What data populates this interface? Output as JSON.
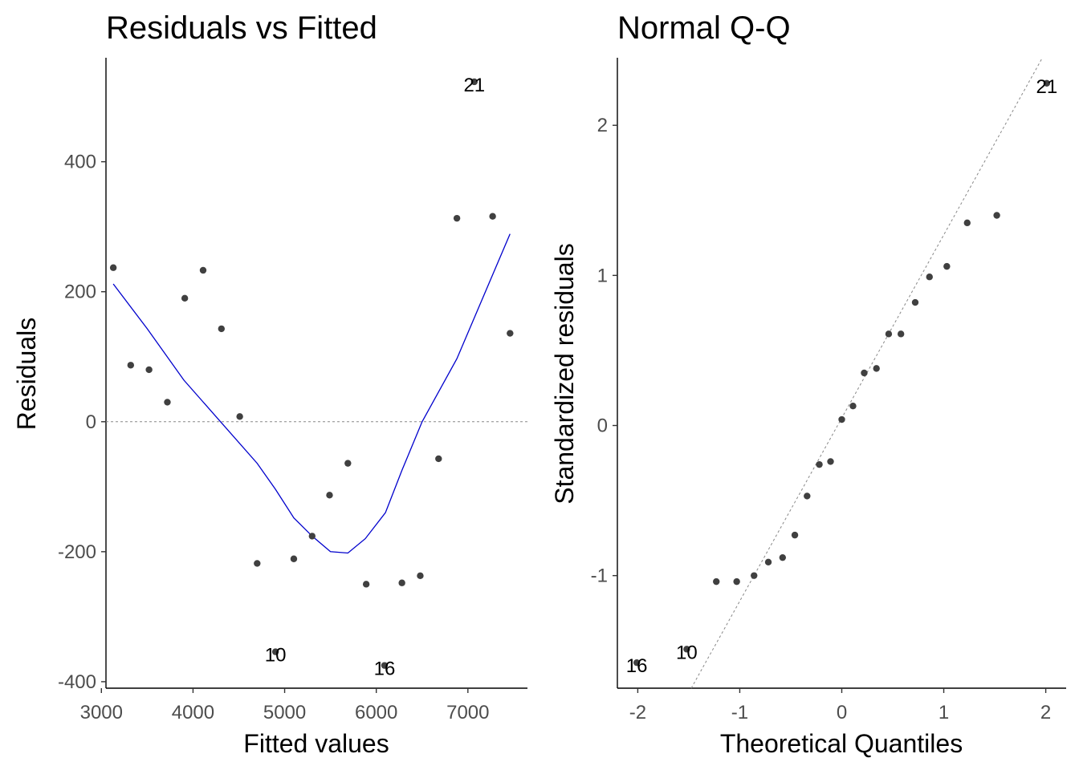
{
  "chart_data": [
    {
      "type": "scatter",
      "title": "Residuals vs Fitted",
      "xlabel": "Fitted values",
      "ylabel": "Residuals",
      "xlim": [
        3050,
        7650
      ],
      "ylim": [
        -410,
        560
      ],
      "xticks": [
        3000,
        4000,
        5000,
        6000,
        7000
      ],
      "yticks": [
        -400,
        -200,
        0,
        200,
        400
      ],
      "x_tick_labels": [
        "3000",
        "4000",
        "5000",
        "6000",
        "7000"
      ],
      "y_tick_labels": [
        "-400",
        "-200",
        "0",
        "200",
        "400"
      ],
      "grid": false,
      "reference_line": {
        "y": 0,
        "style": "dashed",
        "color": "#888888"
      },
      "smooth_color": "#0000cc",
      "points": [
        {
          "x": 3130,
          "y": 237
        },
        {
          "x": 3320,
          "y": 87
        },
        {
          "x": 3520,
          "y": 80
        },
        {
          "x": 3720,
          "y": 30
        },
        {
          "x": 3910,
          "y": 190
        },
        {
          "x": 4110,
          "y": 233
        },
        {
          "x": 4310,
          "y": 143
        },
        {
          "x": 4510,
          "y": 8
        },
        {
          "x": 4700,
          "y": -218
        },
        {
          "x": 4900,
          "y": -354
        },
        {
          "x": 5100,
          "y": -211
        },
        {
          "x": 5300,
          "y": -176
        },
        {
          "x": 5490,
          "y": -113
        },
        {
          "x": 5690,
          "y": -64
        },
        {
          "x": 5890,
          "y": -250
        },
        {
          "x": 6090,
          "y": -375
        },
        {
          "x": 6280,
          "y": -248
        },
        {
          "x": 6480,
          "y": -237
        },
        {
          "x": 6680,
          "y": -57
        },
        {
          "x": 6880,
          "y": 313
        },
        {
          "x": 7070,
          "y": 523
        },
        {
          "x": 7270,
          "y": 316
        },
        {
          "x": 7460,
          "y": 136
        }
      ],
      "smooth": [
        {
          "x": 3130,
          "y": 212
        },
        {
          "x": 3500,
          "y": 143
        },
        {
          "x": 3900,
          "y": 64
        },
        {
          "x": 4300,
          "y": 0
        },
        {
          "x": 4700,
          "y": -64
        },
        {
          "x": 4900,
          "y": -104
        },
        {
          "x": 5100,
          "y": -148
        },
        {
          "x": 5300,
          "y": -176
        },
        {
          "x": 5500,
          "y": -200
        },
        {
          "x": 5690,
          "y": -202
        },
        {
          "x": 5880,
          "y": -180
        },
        {
          "x": 6100,
          "y": -140
        },
        {
          "x": 6280,
          "y": -75
        },
        {
          "x": 6500,
          "y": 0
        },
        {
          "x": 6880,
          "y": 97
        },
        {
          "x": 7460,
          "y": 289
        }
      ],
      "point_labels": [
        {
          "text": "21",
          "x": 7070,
          "y": 523
        },
        {
          "text": "10",
          "x": 4900,
          "y": -354
        },
        {
          "text": "16",
          "x": 6090,
          "y": -375
        }
      ]
    },
    {
      "type": "scatter",
      "title": "Normal Q-Q",
      "xlabel": "Theoretical Quantiles",
      "ylabel": "Standardized residuals",
      "xlim": [
        -2.2,
        2.2
      ],
      "ylim": [
        -1.75,
        2.45
      ],
      "xticks": [
        -2,
        -1,
        0,
        1,
        2
      ],
      "yticks": [
        -1,
        0,
        1,
        2
      ],
      "x_tick_labels": [
        "-2",
        "-1",
        "0",
        "1",
        "2"
      ],
      "y_tick_labels": [
        "-1",
        "0",
        "1",
        "2"
      ],
      "grid": false,
      "reference_line": {
        "intercept": 0.05,
        "slope": 1.22,
        "style": "dashed",
        "color": "#888888"
      },
      "points": [
        {
          "x": -2.01,
          "y": -1.58
        },
        {
          "x": -1.52,
          "y": -1.49
        },
        {
          "x": -1.23,
          "y": -1.04
        },
        {
          "x": -1.03,
          "y": -1.04
        },
        {
          "x": -0.86,
          "y": -1.0
        },
        {
          "x": -0.72,
          "y": -0.91
        },
        {
          "x": -0.58,
          "y": -0.88
        },
        {
          "x": -0.46,
          "y": -0.73
        },
        {
          "x": -0.34,
          "y": -0.47
        },
        {
          "x": -0.22,
          "y": -0.26
        },
        {
          "x": -0.11,
          "y": -0.24
        },
        {
          "x": 0.0,
          "y": 0.04
        },
        {
          "x": 0.11,
          "y": 0.13
        },
        {
          "x": 0.22,
          "y": 0.35
        },
        {
          "x": 0.34,
          "y": 0.38
        },
        {
          "x": 0.46,
          "y": 0.61
        },
        {
          "x": 0.58,
          "y": 0.61
        },
        {
          "x": 0.72,
          "y": 0.82
        },
        {
          "x": 0.86,
          "y": 0.99
        },
        {
          "x": 1.03,
          "y": 1.06
        },
        {
          "x": 1.23,
          "y": 1.35
        },
        {
          "x": 1.52,
          "y": 1.4
        },
        {
          "x": 2.01,
          "y": 2.28
        }
      ],
      "point_labels": [
        {
          "text": "21",
          "x": 2.01,
          "y": 2.28
        },
        {
          "text": "10",
          "x": -1.52,
          "y": -1.49
        },
        {
          "text": "16",
          "x": -2.01,
          "y": -1.58
        }
      ]
    }
  ]
}
